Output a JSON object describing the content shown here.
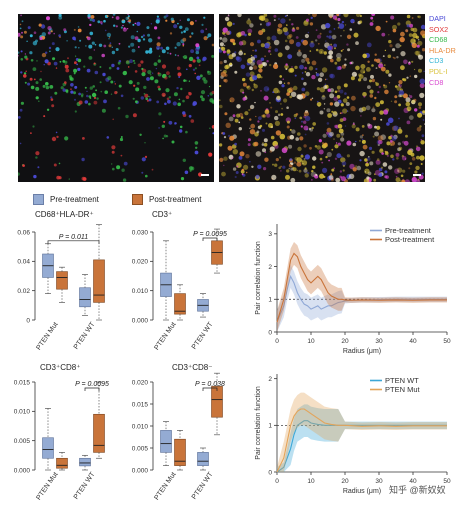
{
  "micrographs": {
    "channels": [
      {
        "name": "DAPI",
        "color": "#4a4ad6"
      },
      {
        "name": "SOX2",
        "color": "#e03a3a"
      },
      {
        "name": "CD68",
        "color": "#36b84a"
      },
      {
        "name": "HLA-DR",
        "color": "#e7893b"
      },
      {
        "name": "CD3",
        "color": "#34b6d6"
      },
      {
        "name": "PDL-I",
        "color": "#d9c23a"
      },
      {
        "name": "CD8",
        "color": "#d94ad0"
      }
    ]
  },
  "legend": {
    "pre": {
      "label": "Pre-treatment",
      "color": "#94abd3"
    },
    "post": {
      "label": "Post-treatment",
      "color": "#c9743a"
    }
  },
  "watermark": "知乎 @新奴奴",
  "chart_data": [
    {
      "type": "box",
      "title": "CD68⁺HLA-DR⁺",
      "categories": [
        "PTEN Mut",
        "PTEN WT"
      ],
      "ylim": [
        0,
        0.06
      ],
      "yticks": [
        "0",
        "0.02",
        "0.04",
        "0.06"
      ],
      "annotation": {
        "text": "P = 0.011"
      },
      "series": [
        {
          "name": "Pre-treatment",
          "boxes": [
            {
              "min": 0.018,
              "q1": 0.029,
              "median": 0.037,
              "q3": 0.045,
              "max": 0.052
            },
            {
              "min": 0.003,
              "q1": 0.009,
              "median": 0.014,
              "q3": 0.022,
              "max": 0.031
            }
          ]
        },
        {
          "name": "Post-treatment",
          "boxes": [
            {
              "min": 0.012,
              "q1": 0.021,
              "median": 0.029,
              "q3": 0.033,
              "max": 0.036
            },
            {
              "min": 0.0,
              "q1": 0.012,
              "median": 0.017,
              "q3": 0.041,
              "max": 0.065
            }
          ]
        }
      ]
    },
    {
      "type": "box",
      "title": "CD3⁺",
      "categories": [
        "PTEN Mut",
        "PTEN WT"
      ],
      "ylim": [
        0,
        0.03
      ],
      "yticks": [
        "0.000",
        "0.010",
        "0.020",
        "0.030"
      ],
      "annotation": {
        "text": "P = 0.0095"
      },
      "series": [
        {
          "name": "Pre-treatment",
          "boxes": [
            {
              "min": 0.0,
              "q1": 0.008,
              "median": 0.012,
              "q3": 0.016,
              "max": 0.027
            },
            {
              "min": 0.001,
              "q1": 0.003,
              "median": 0.005,
              "q3": 0.007,
              "max": 0.009
            }
          ]
        },
        {
          "name": "Post-treatment",
          "boxes": [
            {
              "min": 0.0,
              "q1": 0.002,
              "median": 0.003,
              "q3": 0.009,
              "max": 0.012
            },
            {
              "min": 0.016,
              "q1": 0.019,
              "median": 0.023,
              "q3": 0.027,
              "max": 0.031
            }
          ]
        }
      ]
    },
    {
      "type": "box",
      "title": "CD3⁺CD8⁺",
      "categories": [
        "PTEN Mut",
        "PTEN WT"
      ],
      "ylim": [
        0,
        0.015
      ],
      "yticks": [
        "0.000",
        "0.005",
        "0.010",
        "0.015"
      ],
      "annotation": {
        "text": "P = 0.0095"
      },
      "series": [
        {
          "name": "Pre-treatment",
          "boxes": [
            {
              "min": 0.0,
              "q1": 0.002,
              "median": 0.0035,
              "q3": 0.0055,
              "max": 0.0105
            },
            {
              "min": 0.0,
              "q1": 0.0007,
              "median": 0.0012,
              "q3": 0.002,
              "max": 0.0025
            }
          ]
        },
        {
          "name": "Post-treatment",
          "boxes": [
            {
              "min": 0.0,
              "q1": 0.0003,
              "median": 0.0008,
              "q3": 0.002,
              "max": 0.003
            },
            {
              "min": 0.002,
              "q1": 0.003,
              "median": 0.0042,
              "q3": 0.0095,
              "max": 0.015
            }
          ]
        }
      ]
    },
    {
      "type": "box",
      "title": "CD3⁺CD8⁻",
      "categories": [
        "PTEN Mut",
        "PTEN WT"
      ],
      "ylim": [
        0,
        0.02
      ],
      "yticks": [
        "0.000",
        "0.005",
        "0.010",
        "0.015",
        "0.020"
      ],
      "annotation": {
        "text": "P = 0.038"
      },
      "series": [
        {
          "name": "Pre-treatment",
          "boxes": [
            {
              "min": 0.001,
              "q1": 0.004,
              "median": 0.006,
              "q3": 0.009,
              "max": 0.011
            },
            {
              "min": 0.0,
              "q1": 0.001,
              "median": 0.002,
              "q3": 0.004,
              "max": 0.005
            }
          ]
        },
        {
          "name": "Post-treatment",
          "boxes": [
            {
              "min": 0.0,
              "q1": 0.001,
              "median": 0.002,
              "q3": 0.007,
              "max": 0.009
            },
            {
              "min": 0.008,
              "q1": 0.012,
              "median": 0.016,
              "q3": 0.019,
              "max": 0.022
            }
          ]
        }
      ]
    },
    {
      "type": "line",
      "xlabel": "Radius (μm)",
      "ylabel": "Pair correlation function",
      "xlim": [
        0,
        50
      ],
      "ylim": [
        0,
        3.3
      ],
      "xticks": [
        "0",
        "10",
        "20",
        "30",
        "40",
        "50"
      ],
      "yticks": [
        "0",
        "1",
        "2",
        "3"
      ],
      "reference": 1,
      "series": [
        {
          "name": "Pre-treatment",
          "color": "#8fa8d6",
          "x": [
            0,
            2,
            3,
            4,
            5,
            6,
            7,
            8,
            9,
            10,
            11,
            12,
            13,
            14,
            15,
            16,
            17,
            18,
            19,
            20,
            22,
            25,
            30,
            35,
            40,
            45,
            50
          ],
          "y": [
            0.3,
            0.8,
            1.3,
            1.7,
            1.5,
            1.2,
            1.0,
            0.85,
            0.8,
            0.7,
            0.75,
            0.8,
            0.7,
            0.75,
            0.8,
            0.8,
            0.85,
            0.9,
            0.92,
            0.95,
            0.97,
            0.98,
            0.99,
            1.0,
            1.0,
            1.0,
            1.0
          ]
        },
        {
          "name": "Post-treatment",
          "color": "#c9743a",
          "x": [
            0,
            2,
            3,
            4,
            5,
            6,
            7,
            8,
            9,
            10,
            11,
            12,
            13,
            14,
            15,
            16,
            17,
            18,
            19,
            20,
            22,
            25,
            30,
            35,
            40,
            45,
            50
          ],
          "y": [
            0.3,
            1.0,
            1.6,
            2.2,
            2.4,
            2.3,
            2.0,
            1.8,
            1.6,
            1.5,
            1.6,
            1.7,
            1.6,
            1.4,
            1.2,
            1.1,
            1.05,
            1.0,
            1.0,
            0.98,
            0.97,
            0.98,
            0.97,
            0.98,
            0.97,
            0.98,
            0.98
          ]
        }
      ]
    },
    {
      "type": "line",
      "xlabel": "Radius (μm)",
      "ylabel": "Pair correlation function",
      "xlim": [
        0,
        50
      ],
      "ylim": [
        0,
        2.1
      ],
      "xticks": [
        "0",
        "10",
        "20",
        "30",
        "40",
        "50"
      ],
      "yticks": [
        "0",
        "1",
        "2"
      ],
      "reference": 1,
      "series": [
        {
          "name": "PTEN WT",
          "color": "#3da7d6",
          "x": [
            0,
            2,
            4,
            5,
            6,
            7,
            8,
            9,
            10,
            12,
            14,
            16,
            18,
            20,
            25,
            30,
            35,
            40,
            45,
            50
          ],
          "y": [
            0.0,
            0.1,
            0.5,
            0.8,
            1.0,
            1.05,
            1.1,
            1.1,
            1.05,
            1.02,
            1.0,
            1.0,
            1.0,
            1.0,
            1.0,
            1.0,
            1.0,
            1.0,
            1.0,
            1.0
          ]
        },
        {
          "name": "PTEN Mut",
          "color": "#e3a45a",
          "x": [
            0,
            2,
            4,
            5,
            6,
            7,
            8,
            9,
            10,
            12,
            14,
            16,
            18,
            20,
            25,
            30,
            35,
            40,
            45,
            50
          ],
          "y": [
            0.0,
            0.3,
            1.0,
            1.2,
            1.3,
            1.35,
            1.35,
            1.3,
            1.25,
            1.15,
            1.05,
            1.02,
            1.0,
            1.0,
            0.98,
            0.99,
            0.98,
            0.99,
            0.99,
            0.99
          ]
        }
      ]
    }
  ]
}
